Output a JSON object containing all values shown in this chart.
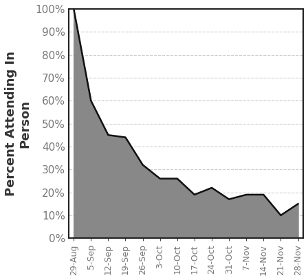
{
  "x_labels": [
    "29-Aug",
    "5-Sep",
    "12-Sep",
    "19-Sep",
    "26-Sep",
    "3-Oct",
    "10-Oct",
    "17-Oct",
    "24-Oct",
    "31-Oct",
    "7-Nov",
    "14-Nov",
    "21-Nov",
    "28-Nov"
  ],
  "y_values": [
    1.0,
    0.6,
    0.45,
    0.44,
    0.32,
    0.26,
    0.26,
    0.19,
    0.22,
    0.17,
    0.19,
    0.19,
    0.1,
    0.15
  ],
  "fill_color": "#888888",
  "line_color": "#111111",
  "background_color": "#ffffff",
  "ylabel": "Percent Attending In\nPerson",
  "ylim": [
    0,
    1.0
  ],
  "yticks": [
    0.0,
    0.1,
    0.2,
    0.3,
    0.4,
    0.5,
    0.6,
    0.7,
    0.8,
    0.9,
    1.0
  ],
  "grid_color": "#cccccc",
  "grid_style": "--",
  "ylabel_fontsize": 13,
  "tick_fontsize": 11,
  "xtick_fontsize": 9,
  "line_width": 1.8
}
